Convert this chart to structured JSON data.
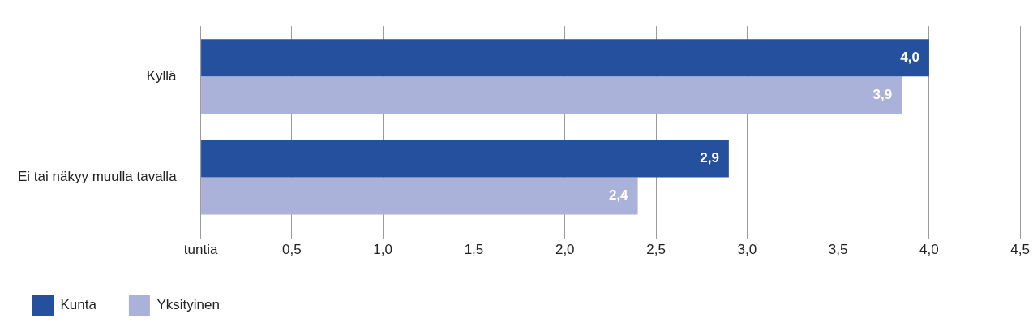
{
  "chart_data": {
    "type": "bar",
    "orientation": "horizontal",
    "categories": [
      "Kyllä",
      "Ei tai näkyy muulla tavalla"
    ],
    "series": [
      {
        "name": "Kunta",
        "color": "#25509e",
        "values": [
          4.0,
          2.9
        ],
        "value_labels": [
          "4,0",
          "2,9"
        ]
      },
      {
        "name": "Yksityinen",
        "color": "#abb2da",
        "values": [
          3.85,
          2.4
        ],
        "value_labels": [
          "3,9",
          "2,4"
        ]
      }
    ],
    "xlim": [
      0,
      4.5
    ],
    "xticks": [
      {
        "value": 0,
        "label": "tuntia"
      },
      {
        "value": 0.5,
        "label": "0,5"
      },
      {
        "value": 1,
        "label": "1,0"
      },
      {
        "value": 1.5,
        "label": "1,5"
      },
      {
        "value": 2,
        "label": "2,0"
      },
      {
        "value": 2.5,
        "label": "2,5"
      },
      {
        "value": 3,
        "label": "3,0"
      },
      {
        "value": 3.5,
        "label": "3,5"
      },
      {
        "value": 4,
        "label": "4,0"
      },
      {
        "value": 4.5,
        "label": "4,5"
      }
    ],
    "grid": "x",
    "legend": "bottom left"
  }
}
